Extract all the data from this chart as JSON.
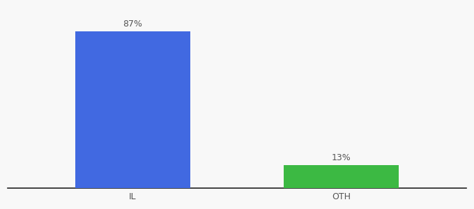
{
  "categories": [
    "IL",
    "OTH"
  ],
  "values": [
    87,
    13
  ],
  "bar_colors": [
    "#4169E1",
    "#3CB943"
  ],
  "value_labels": [
    "87%",
    "13%"
  ],
  "background_color": "#f8f8f8",
  "ylim": [
    0,
    100
  ],
  "bar_width": 0.55,
  "label_fontsize": 9,
  "tick_fontsize": 9,
  "label_color": "#555555",
  "spine_color": "#222222"
}
